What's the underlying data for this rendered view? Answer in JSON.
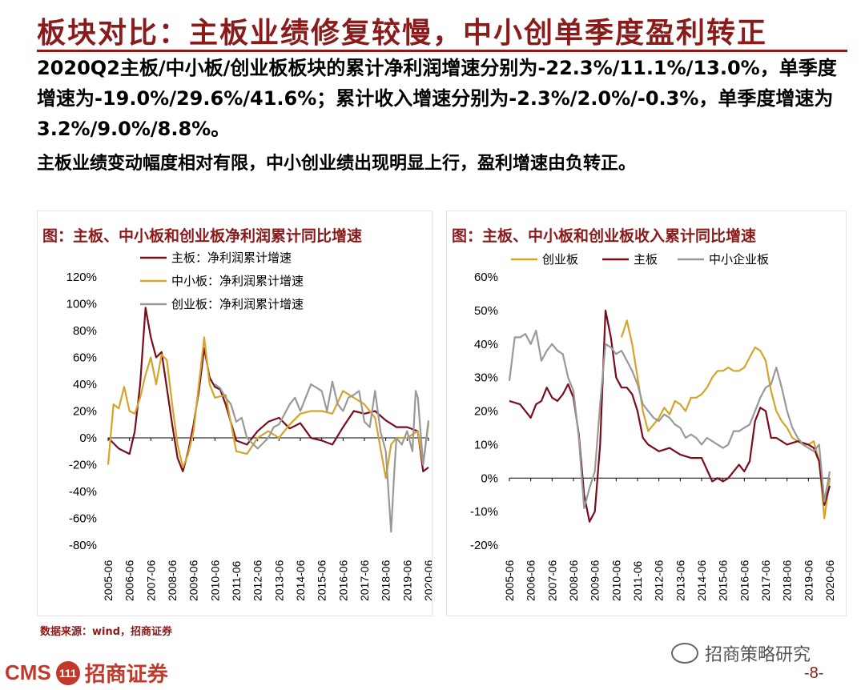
{
  "page": {
    "title": "板块对比：主板业绩修复较慢，中小创单季度盈利转正",
    "para1": "2020Q2主板/中小板/创业板板块的累计净利润增速分别为-22.3%/11.1%/13.0%，单季度增速为-19.0%/29.6%/41.6%；累计收入增速分别为-2.3%/2.0%/-0.3%，单季度增速为3.2%/9.0%/8.8%。",
    "para2": "主板业绩变动幅度相对有限，中小创业绩出现明显上行，盈利增速由负转正。",
    "source": "数据来源：wind，招商证券",
    "logo_text_en": "CMS",
    "logo_badge": "111",
    "logo_text_cn": "招商证券",
    "watermark": "招商策略研究",
    "page_number": "-8-",
    "colors": {
      "main": "#7a0c1c",
      "sme": "#d4a52a",
      "gem": "#999999",
      "accent": "#8b1a1a"
    }
  },
  "chart_data": [
    {
      "type": "line",
      "title": "图：主板、中小板和创业板净利润累计同比增速",
      "x_ticks": [
        "2005-06",
        "2006-06",
        "2007-06",
        "2008-06",
        "2009-06",
        "2010-06",
        "2011-06",
        "2012-06",
        "2013-06",
        "2014-06",
        "2015-06",
        "2016-06",
        "2017-06",
        "2018-06",
        "2019-06",
        "2020-06"
      ],
      "ylim": [
        -80,
        120
      ],
      "y_ticks": [
        120,
        100,
        80,
        60,
        40,
        20,
        0,
        -20,
        -40,
        -60,
        -80
      ],
      "y_tick_labels": [
        "120%",
        "100%",
        "80%",
        "60%",
        "40%",
        "20%",
        "0%",
        "-20%",
        "-40%",
        "-60%",
        "-80%"
      ],
      "legend": [
        "主板：净利润累计增速",
        "中小板：净利润累计增速",
        "创业板：净利润累计增速"
      ],
      "series": [
        {
          "name": "主板：净利润累计增速",
          "color": "#7a0c1c",
          "x": [
            2005.5,
            2006.0,
            2006.5,
            2006.75,
            2007.0,
            2007.25,
            2007.5,
            2007.75,
            2008.0,
            2008.5,
            2008.75,
            2009.0,
            2009.25,
            2009.5,
            2009.75,
            2010.0,
            2010.25,
            2010.5,
            2010.75,
            2011.0,
            2011.5,
            2012.0,
            2012.5,
            2013.0,
            2013.5,
            2014.0,
            2014.5,
            2015.0,
            2015.5,
            2016.0,
            2016.5,
            2017.0,
            2017.5,
            2018.0,
            2018.5,
            2019.0,
            2019.5,
            2020.0,
            2020.25,
            2020.5
          ],
          "y": [
            0,
            -8,
            -12,
            5,
            40,
            97,
            75,
            60,
            64,
            10,
            -15,
            -25,
            -10,
            10,
            35,
            67,
            45,
            38,
            36,
            25,
            -2,
            -5,
            5,
            12,
            15,
            7,
            11,
            0,
            -2,
            -5,
            8,
            20,
            18,
            20,
            13,
            8,
            8,
            5,
            -25,
            -22
          ]
        },
        {
          "name": "中小板：净利润累计增速",
          "color": "#d4a52a",
          "x": [
            2005.5,
            2005.75,
            2006.0,
            2006.25,
            2006.5,
            2006.75,
            2007.0,
            2007.25,
            2007.5,
            2007.75,
            2008.0,
            2008.25,
            2008.5,
            2008.75,
            2009.0,
            2009.25,
            2009.5,
            2009.75,
            2010.0,
            2010.25,
            2010.5,
            2011.0,
            2011.5,
            2012.0,
            2012.5,
            2013.0,
            2013.5,
            2014.0,
            2014.5,
            2015.0,
            2015.5,
            2016.0,
            2016.5,
            2017.0,
            2017.5,
            2018.0,
            2018.5,
            2018.75,
            2019.0,
            2019.5,
            2020.0,
            2020.25,
            2020.5
          ],
          "y": [
            -20,
            25,
            22,
            38,
            20,
            18,
            30,
            47,
            60,
            40,
            62,
            58,
            25,
            -5,
            -22,
            -12,
            5,
            40,
            75,
            40,
            30,
            32,
            -10,
            -12,
            0,
            5,
            0,
            10,
            18,
            20,
            20,
            18,
            35,
            30,
            25,
            15,
            -30,
            -5,
            0,
            0,
            5,
            -20,
            11
          ]
        },
        {
          "name": "创业板：净利润累计增速",
          "color": "#999999",
          "x": [
            2010.5,
            2010.75,
            2011.0,
            2011.25,
            2011.5,
            2011.75,
            2012.0,
            2012.5,
            2013.0,
            2013.25,
            2013.5,
            2014.0,
            2014.25,
            2014.5,
            2015.0,
            2015.5,
            2015.75,
            2016.0,
            2016.25,
            2016.5,
            2016.75,
            2017.0,
            2017.25,
            2017.5,
            2017.75,
            2018.0,
            2018.25,
            2018.5,
            2018.75,
            2018.9,
            2019.0,
            2019.25,
            2019.5,
            2019.75,
            2019.9,
            2020.0,
            2020.25,
            2020.5
          ],
          "y": [
            40,
            37,
            30,
            25,
            12,
            15,
            0,
            -8,
            0,
            8,
            10,
            25,
            30,
            20,
            40,
            35,
            20,
            42,
            25,
            20,
            30,
            32,
            35,
            12,
            8,
            35,
            5,
            -10,
            -70,
            -25,
            0,
            -5,
            5,
            -10,
            35,
            30,
            -20,
            13
          ]
        }
      ]
    },
    {
      "type": "line",
      "title": "图：主板、中小板和创业板收入累计同比增速",
      "x_ticks": [
        "2005-06",
        "2006-06",
        "2007-06",
        "2008-06",
        "2009-06",
        "2010-06",
        "2011-06",
        "2012-06",
        "2013-06",
        "2014-06",
        "2015-06",
        "2016-06",
        "2017-06",
        "2018-06",
        "2019-06",
        "2020-06"
      ],
      "ylim": [
        -20,
        60
      ],
      "y_ticks": [
        60,
        50,
        40,
        30,
        20,
        10,
        0,
        -10,
        -20
      ],
      "y_tick_labels": [
        "60%",
        "50%",
        "40%",
        "30%",
        "20%",
        "10%",
        "0%",
        "-10%",
        "-20%"
      ],
      "legend": [
        "创业板",
        "主板",
        "中小企业板"
      ],
      "series": [
        {
          "name": "创业板",
          "color": "#d4a52a",
          "x": [
            2010.75,
            2011.0,
            2011.25,
            2011.5,
            2011.75,
            2012.0,
            2012.25,
            2012.5,
            2012.75,
            2013.0,
            2013.25,
            2013.5,
            2013.75,
            2014.0,
            2014.25,
            2014.5,
            2014.75,
            2015.0,
            2015.25,
            2015.5,
            2015.75,
            2016.0,
            2016.25,
            2016.5,
            2016.75,
            2017.0,
            2017.25,
            2017.5,
            2017.75,
            2018.0,
            2018.25,
            2018.5,
            2018.75,
            2019.0,
            2019.25,
            2019.5,
            2019.75,
            2020.0,
            2020.25,
            2020.5
          ],
          "y": [
            42,
            47,
            40,
            30,
            20,
            14,
            16,
            18,
            21,
            19,
            23,
            22,
            20,
            24,
            24,
            25,
            27,
            30,
            32,
            32,
            33,
            32,
            32,
            33,
            36,
            39,
            38,
            35,
            26,
            20,
            17,
            15,
            12,
            11,
            10,
            10,
            11,
            5,
            -12,
            -0.3
          ]
        },
        {
          "name": "主板",
          "color": "#7a0c1c",
          "x": [
            2005.5,
            2006.0,
            2006.5,
            2006.75,
            2007.0,
            2007.25,
            2007.5,
            2007.75,
            2008.0,
            2008.25,
            2008.5,
            2008.75,
            2009.0,
            2009.25,
            2009.5,
            2009.75,
            2010.0,
            2010.25,
            2010.5,
            2010.75,
            2011.0,
            2011.25,
            2011.5,
            2011.75,
            2012.0,
            2012.5,
            2013.0,
            2013.5,
            2014.0,
            2014.5,
            2015.0,
            2015.25,
            2015.5,
            2015.75,
            2016.0,
            2016.25,
            2016.5,
            2016.75,
            2017.0,
            2017.25,
            2017.5,
            2017.75,
            2018.0,
            2018.5,
            2019.0,
            2019.5,
            2019.75,
            2020.0,
            2020.25,
            2020.5
          ],
          "y": [
            23,
            22,
            18,
            22,
            23,
            27,
            24,
            23,
            25,
            28,
            24,
            13,
            -5,
            -13,
            -10,
            10,
            50,
            42,
            30,
            27,
            27,
            25,
            20,
            12,
            10,
            8,
            9,
            7,
            6,
            6,
            -1,
            0,
            -1,
            0,
            2,
            4,
            2,
            5,
            17,
            21,
            20,
            12,
            12,
            10,
            11,
            10,
            9,
            5,
            -8,
            -2.3
          ]
        },
        {
          "name": "中小企业板",
          "color": "#999999",
          "x": [
            2005.5,
            2005.75,
            2006.0,
            2006.25,
            2006.5,
            2006.75,
            2007.0,
            2007.25,
            2007.5,
            2007.75,
            2008.0,
            2008.25,
            2008.5,
            2008.75,
            2009.0,
            2009.25,
            2009.5,
            2009.75,
            2010.0,
            2010.25,
            2010.5,
            2010.75,
            2011.0,
            2011.25,
            2011.5,
            2011.75,
            2012.0,
            2012.25,
            2012.5,
            2012.75,
            2013.0,
            2013.25,
            2013.5,
            2013.75,
            2014.0,
            2014.25,
            2014.5,
            2014.75,
            2015.0,
            2015.25,
            2015.5,
            2015.75,
            2016.0,
            2016.25,
            2016.5,
            2016.75,
            2017.0,
            2017.25,
            2017.5,
            2017.75,
            2018.0,
            2018.25,
            2018.5,
            2018.75,
            2019.0,
            2019.25,
            2019.5,
            2019.75,
            2020.0,
            2020.25,
            2020.5
          ],
          "y": [
            29,
            42,
            42,
            43,
            40,
            44,
            35,
            38,
            40,
            38,
            37,
            30,
            26,
            12,
            -9,
            -3,
            2,
            22,
            40,
            39,
            37,
            38,
            35,
            32,
            28,
            22,
            20,
            18,
            17,
            19,
            18,
            16,
            15,
            12,
            13,
            12,
            10,
            12,
            11,
            10,
            9,
            10,
            14,
            14,
            15,
            16,
            20,
            24,
            27,
            28,
            33,
            27,
            20,
            15,
            12,
            10,
            9,
            8,
            10,
            -7,
            2
          ]
        }
      ]
    }
  ]
}
